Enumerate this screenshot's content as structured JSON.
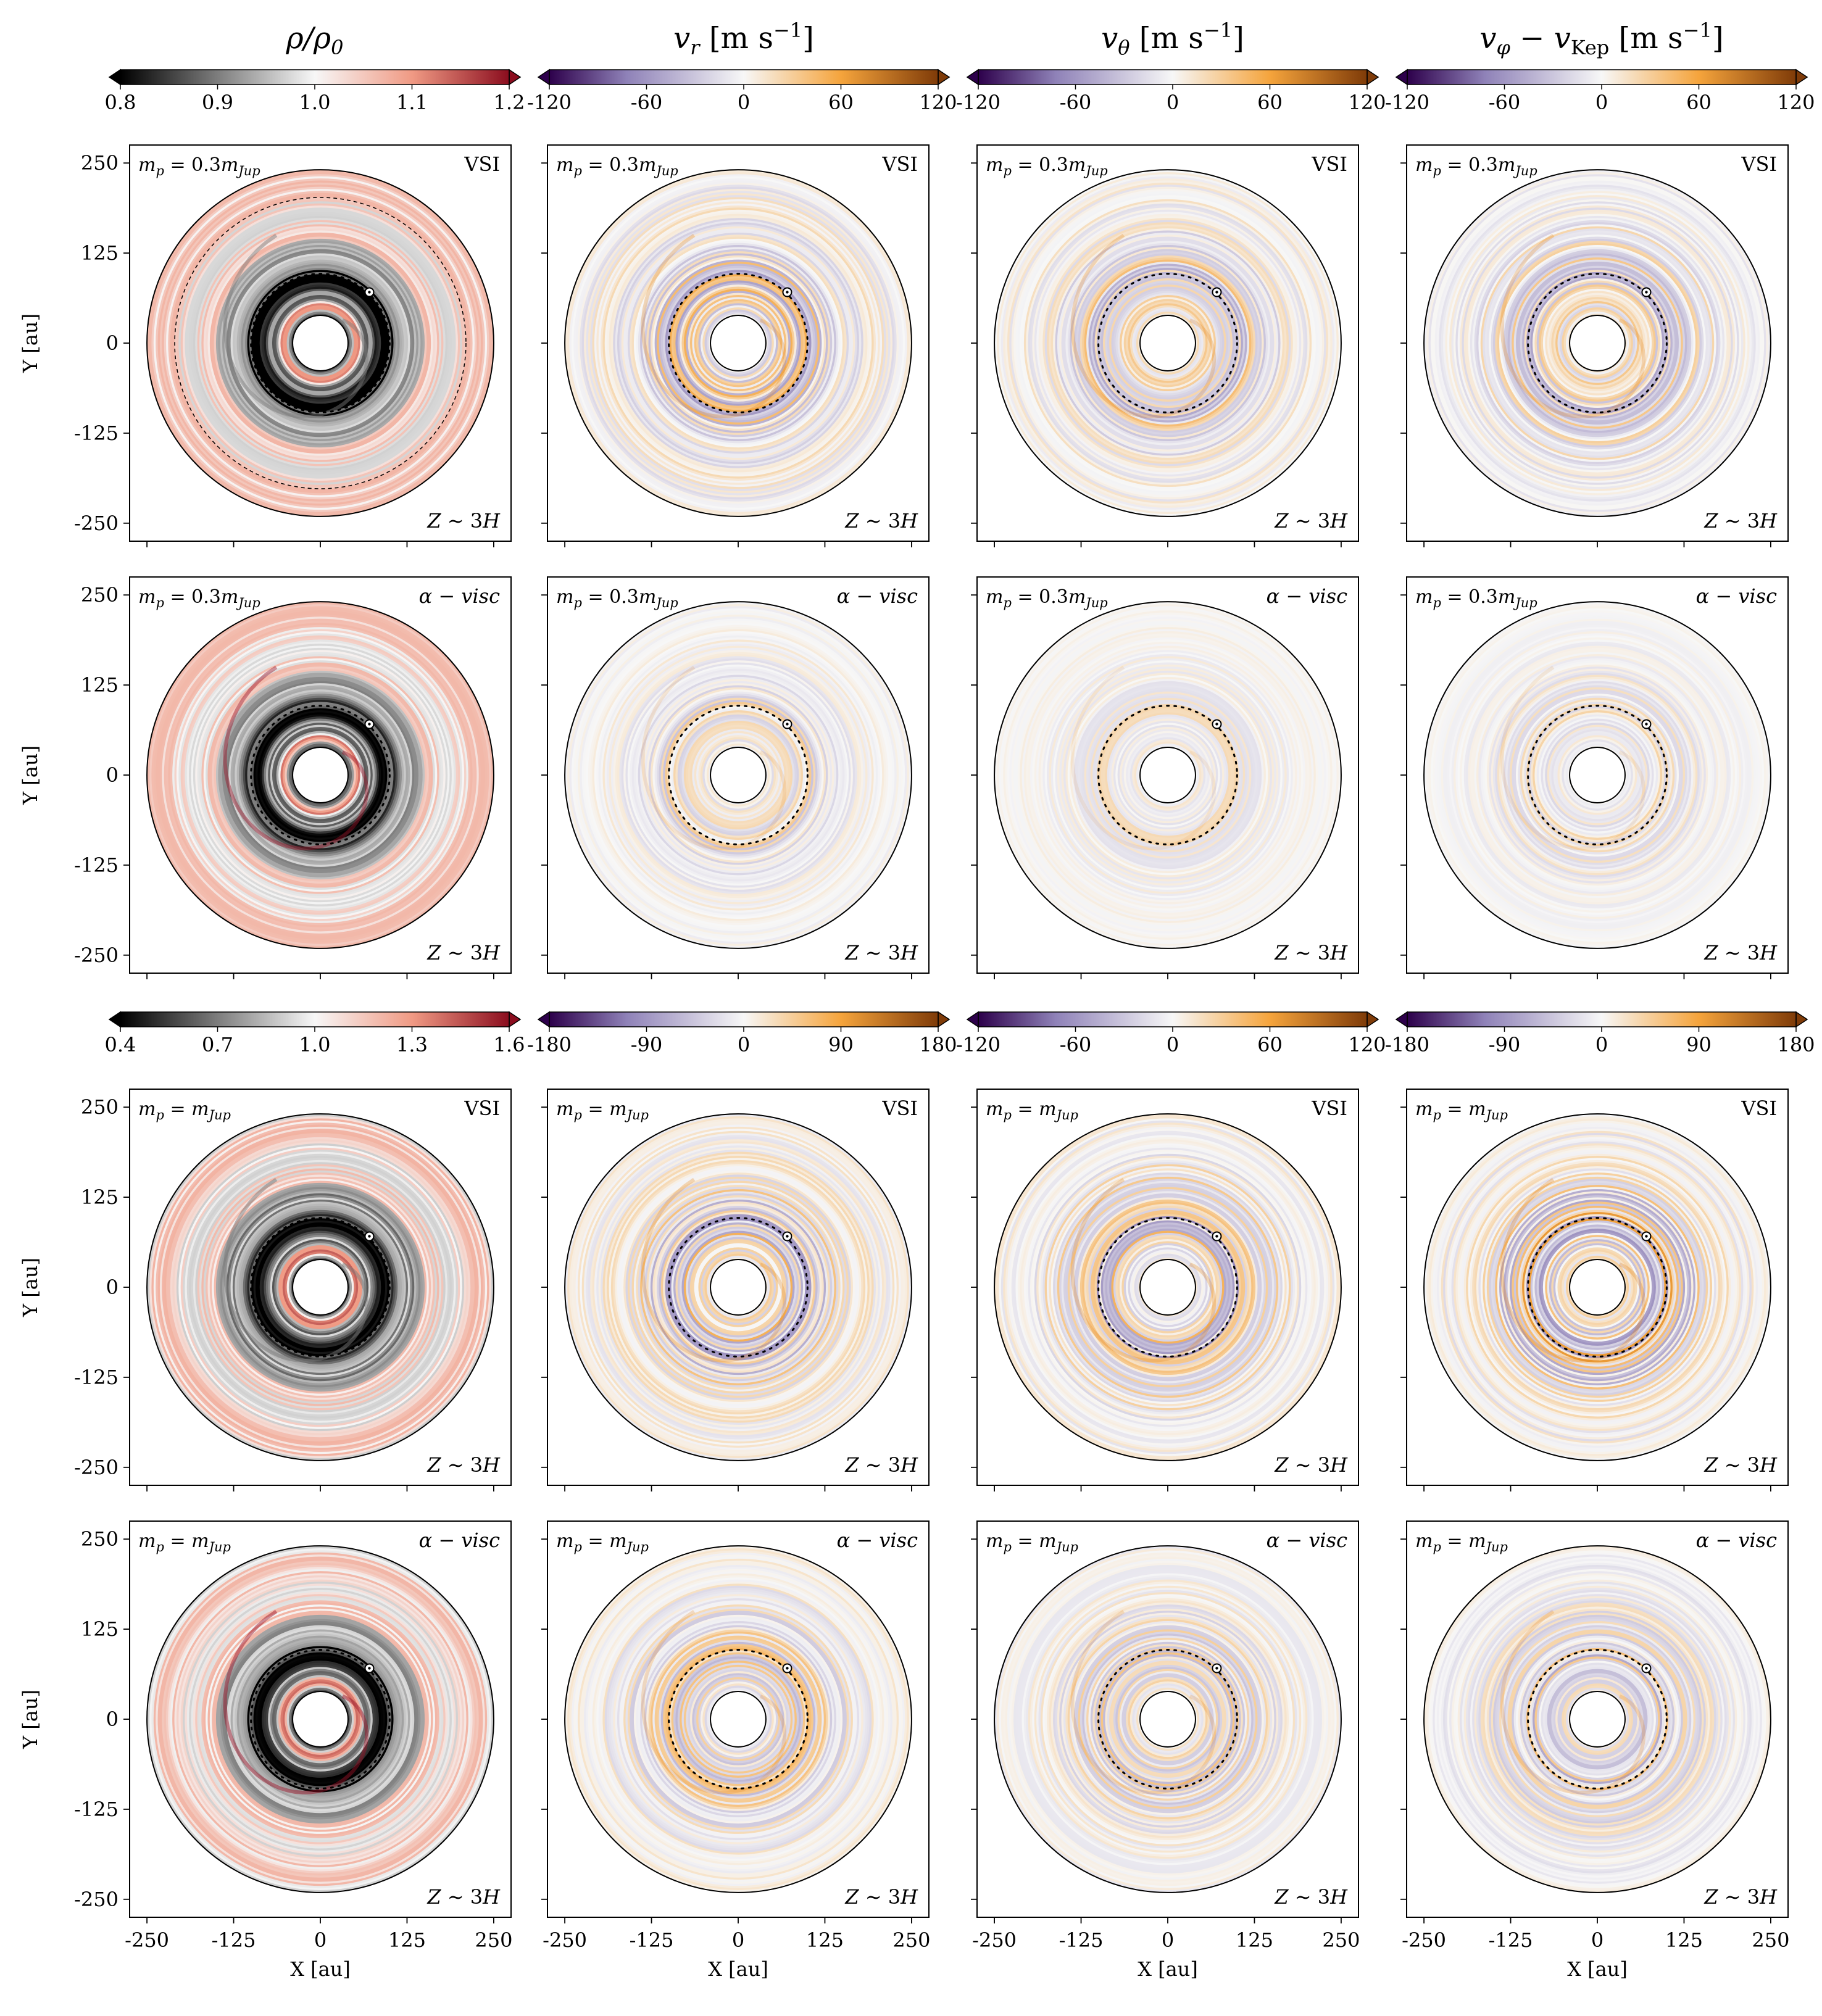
{
  "chart_data": {
    "type": "heatmap",
    "description_fields": "grid of polar disk maps, 4 rows x 4 columns",
    "columns": [
      {
        "title": "ρ/ρ₀",
        "title_main": "ρ/ρ",
        "title_sub": "0",
        "title_unit": ""
      },
      {
        "title": "v_r [m s⁻¹]",
        "title_main": "v",
        "title_sub": "r",
        "title_unit": " [m s",
        "title_sup": "−1",
        "title_close": "]"
      },
      {
        "title": "v_θ [m s⁻¹]",
        "title_main": "v",
        "title_sub": "θ",
        "title_unit": " [m s",
        "title_sup": "−1",
        "title_close": "]"
      },
      {
        "title": "v_φ − v_Kep [m s⁻¹]",
        "title_main": "v",
        "title_sub": "φ",
        "title_mid": " − v",
        "title_sub2": "Kep",
        "title_unit": " [m s",
        "title_sup": "−1",
        "title_close": "]"
      }
    ],
    "colorbars_top": [
      {
        "cmap": "density",
        "range": [
          0.8,
          1.2
        ],
        "ticks": [
          "0.8",
          "0.9",
          "1.0",
          "1.1",
          "1.2"
        ],
        "tick_values": [
          0.8,
          0.9,
          1.0,
          1.1,
          1.2
        ]
      },
      {
        "cmap": "diverging",
        "range": [
          -120,
          120
        ],
        "ticks": [
          "-120",
          "-60",
          "0",
          "60",
          "120"
        ],
        "tick_values": [
          -120,
          -60,
          0,
          60,
          120
        ]
      },
      {
        "cmap": "diverging",
        "range": [
          -120,
          120
        ],
        "ticks": [
          "-120",
          "-60",
          "0",
          "60",
          "120"
        ],
        "tick_values": [
          -120,
          -60,
          0,
          60,
          120
        ]
      },
      {
        "cmap": "diverging",
        "range": [
          -120,
          120
        ],
        "ticks": [
          "-120",
          "-60",
          "0",
          "60",
          "120"
        ],
        "tick_values": [
          -120,
          -60,
          0,
          60,
          120
        ]
      }
    ],
    "colorbars_bottom": [
      {
        "cmap": "density",
        "range": [
          0.4,
          1.6
        ],
        "ticks": [
          "0.4",
          "0.7",
          "1.0",
          "1.3",
          "1.6"
        ],
        "tick_values": [
          0.4,
          0.7,
          1.0,
          1.3,
          1.6
        ]
      },
      {
        "cmap": "diverging",
        "range": [
          -180,
          180
        ],
        "ticks": [
          "-180",
          "-90",
          "0",
          "90",
          "180"
        ],
        "tick_values": [
          -180,
          -90,
          0,
          90,
          180
        ]
      },
      {
        "cmap": "diverging",
        "range": [
          -120,
          120
        ],
        "ticks": [
          "-120",
          "-60",
          "0",
          "60",
          "120"
        ],
        "tick_values": [
          -120,
          -60,
          0,
          60,
          120
        ]
      },
      {
        "cmap": "diverging",
        "range": [
          -180,
          180
        ],
        "ticks": [
          "-180",
          "-90",
          "0",
          "90",
          "180"
        ],
        "tick_values": [
          -180,
          -90,
          0,
          90,
          180
        ]
      }
    ],
    "rows": [
      {
        "planet_label": "m_p = 0.3m_Jup",
        "planet_mass_text": "0.3",
        "model": "VSI",
        "model_italic": false,
        "height_label": "Z ∼ 3H",
        "strength": [
          0.85,
          0.55,
          0.5,
          0.5
        ]
      },
      {
        "planet_label": "m_p = 0.3m_Jup",
        "planet_mass_text": "0.3",
        "model": "α − visc",
        "model_italic": true,
        "height_label": "Z ∼ 3H",
        "strength": [
          0.8,
          0.3,
          0.2,
          0.25
        ]
      },
      {
        "planet_label": "m_p = m_Jup",
        "planet_mass_text": "",
        "model": "VSI",
        "model_italic": false,
        "height_label": "Z ∼ 3H",
        "strength": [
          0.9,
          0.55,
          0.55,
          0.6
        ]
      },
      {
        "planet_label": "m_p = m_Jup",
        "planet_mass_text": "",
        "model": "α − visc",
        "model_italic": true,
        "height_label": "Z ∼ 3H",
        "strength": [
          0.85,
          0.45,
          0.4,
          0.45
        ]
      }
    ],
    "axes": {
      "xlabel": "X [au]",
      "ylabel": "Y [au]",
      "xlim": [
        -275,
        275
      ],
      "ylim": [
        -275,
        275
      ],
      "x_ticks": [
        "-250",
        "-125",
        "0",
        "125",
        "250"
      ],
      "y_ticks": [
        "250",
        "125",
        "0",
        "-125",
        "-250"
      ],
      "tick_values": [
        -250,
        -125,
        0,
        125,
        250
      ]
    },
    "disk": {
      "inner_radius_au": 40,
      "outer_radius_au": 250,
      "planet_orbit_au": 100,
      "planet_angle_deg": 45,
      "outer_dashed_ring_au": 210
    }
  }
}
